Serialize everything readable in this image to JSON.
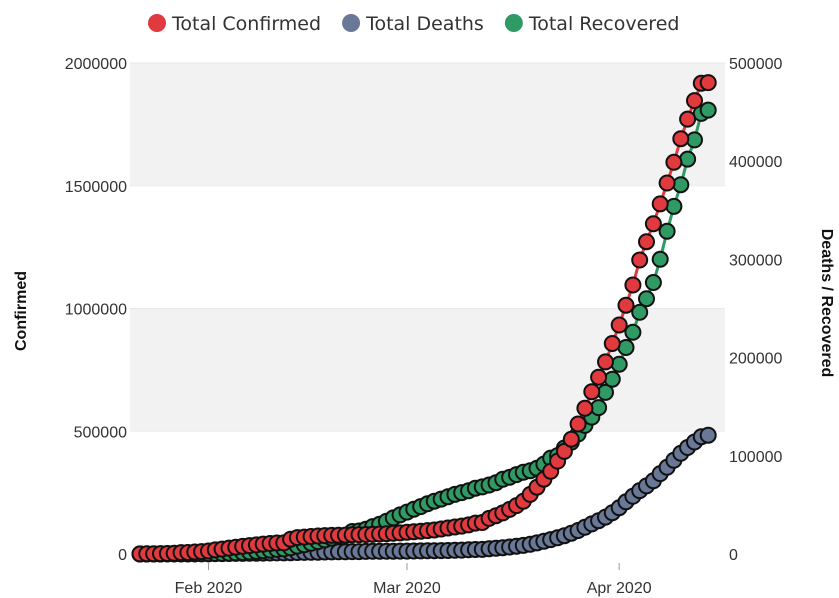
{
  "chart_data": {
    "type": "scatter",
    "x_axis": {
      "type": "date",
      "range": [
        "2020-01-22",
        "2020-04-15"
      ],
      "ticks": [
        {
          "date": "2020-02-01",
          "label": "Feb 2020"
        },
        {
          "date": "2020-03-01",
          "label": "Mar 2020"
        },
        {
          "date": "2020-04-01",
          "label": "Apr 2020"
        }
      ]
    },
    "y_axis_left": {
      "title": "Confirmed",
      "range": [
        0,
        2000000
      ],
      "ticks": [
        "0",
        "500000",
        "1000000",
        "1500000",
        "2000000"
      ]
    },
    "y_axis_right": {
      "title": "Deaths / Recovered",
      "range": [
        0,
        500000
      ],
      "ticks": [
        "0",
        "100000",
        "200000",
        "300000",
        "400000",
        "500000"
      ]
    },
    "grid": "alternating horizontal bands",
    "legend_placement": "top",
    "series": [
      {
        "name": "Total Confirmed",
        "axis": "left",
        "color": "#e0393e",
        "points": [
          [
            "2020-01-22",
            555
          ],
          [
            "2020-01-23",
            654
          ],
          [
            "2020-01-24",
            941
          ],
          [
            "2020-01-25",
            1434
          ],
          [
            "2020-01-26",
            2118
          ],
          [
            "2020-01-27",
            2927
          ],
          [
            "2020-01-28",
            5578
          ],
          [
            "2020-01-29",
            6166
          ],
          [
            "2020-01-30",
            8234
          ],
          [
            "2020-01-31",
            9927
          ],
          [
            "2020-02-01",
            12038
          ],
          [
            "2020-02-02",
            16787
          ],
          [
            "2020-02-03",
            19881
          ],
          [
            "2020-02-04",
            23892
          ],
          [
            "2020-02-05",
            27635
          ],
          [
            "2020-02-06",
            30794
          ],
          [
            "2020-02-07",
            34391
          ],
          [
            "2020-02-08",
            37120
          ],
          [
            "2020-02-09",
            40150
          ],
          [
            "2020-02-10",
            42762
          ],
          [
            "2020-02-11",
            44802
          ],
          [
            "2020-02-12",
            45221
          ],
          [
            "2020-02-13",
            60368
          ],
          [
            "2020-02-14",
            66885
          ],
          [
            "2020-02-15",
            69030
          ],
          [
            "2020-02-16",
            71224
          ],
          [
            "2020-02-17",
            73258
          ],
          [
            "2020-02-18",
            75136
          ],
          [
            "2020-02-19",
            75639
          ],
          [
            "2020-02-20",
            76197
          ],
          [
            "2020-02-21",
            76823
          ],
          [
            "2020-02-22",
            78579
          ],
          [
            "2020-02-23",
            78965
          ],
          [
            "2020-02-24",
            79568
          ],
          [
            "2020-02-25",
            80413
          ],
          [
            "2020-02-26",
            81395
          ],
          [
            "2020-02-27",
            82754
          ],
          [
            "2020-02-28",
            84120
          ],
          [
            "2020-02-29",
            86011
          ],
          [
            "2020-03-01",
            88369
          ],
          [
            "2020-03-02",
            90306
          ],
          [
            "2020-03-03",
            92840
          ],
          [
            "2020-03-04",
            95120
          ],
          [
            "2020-03-05",
            97886
          ],
          [
            "2020-03-06",
            101801
          ],
          [
            "2020-03-07",
            105847
          ],
          [
            "2020-03-08",
            109821
          ],
          [
            "2020-03-09",
            113590
          ],
          [
            "2020-03-10",
            118620
          ],
          [
            "2020-03-11",
            125875
          ],
          [
            "2020-03-12",
            128352
          ],
          [
            "2020-03-13",
            145205
          ],
          [
            "2020-03-14",
            156101
          ],
          [
            "2020-03-15",
            167454
          ],
          [
            "2020-03-16",
            181574
          ],
          [
            "2020-03-17",
            197102
          ],
          [
            "2020-03-18",
            214821
          ],
          [
            "2020-03-19",
            242570
          ],
          [
            "2020-03-20",
            272208
          ],
          [
            "2020-03-21",
            304507
          ],
          [
            "2020-03-22",
            336953
          ],
          [
            "2020-03-23",
            378235
          ],
          [
            "2020-03-24",
            418045
          ],
          [
            "2020-03-25",
            467653
          ],
          [
            "2020-03-26",
            529591
          ],
          [
            "2020-03-27",
            593291
          ],
          [
            "2020-03-28",
            660693
          ],
          [
            "2020-03-29",
            720140
          ],
          [
            "2020-03-30",
            782389
          ],
          [
            "2020-03-31",
            857487
          ],
          [
            "2020-04-01",
            932605
          ],
          [
            "2020-04-02",
            1013466
          ],
          [
            "2020-04-03",
            1095917
          ],
          [
            "2020-04-04",
            1197405
          ],
          [
            "2020-04-05",
            1272115
          ],
          [
            "2020-04-06",
            1345101
          ],
          [
            "2020-04-07",
            1426096
          ],
          [
            "2020-04-08",
            1511104
          ],
          [
            "2020-04-09",
            1595350
          ],
          [
            "2020-04-10",
            1691719
          ],
          [
            "2020-04-11",
            1771514
          ],
          [
            "2020-04-12",
            1846679
          ],
          [
            "2020-04-13",
            1917320
          ],
          [
            "2020-04-14",
            1920000
          ]
        ]
      },
      {
        "name": "Total Deaths",
        "axis": "right",
        "color": "#6a7898",
        "points": [
          [
            "2020-01-22",
            17
          ],
          [
            "2020-01-23",
            18
          ],
          [
            "2020-01-24",
            26
          ],
          [
            "2020-01-25",
            42
          ],
          [
            "2020-01-26",
            56
          ],
          [
            "2020-01-27",
            82
          ],
          [
            "2020-01-28",
            131
          ],
          [
            "2020-01-29",
            133
          ],
          [
            "2020-01-30",
            171
          ],
          [
            "2020-01-31",
            213
          ],
          [
            "2020-02-01",
            259
          ],
          [
            "2020-02-02",
            362
          ],
          [
            "2020-02-03",
            426
          ],
          [
            "2020-02-04",
            492
          ],
          [
            "2020-02-05",
            564
          ],
          [
            "2020-02-06",
            634
          ],
          [
            "2020-02-07",
            719
          ],
          [
            "2020-02-08",
            806
          ],
          [
            "2020-02-09",
            906
          ],
          [
            "2020-02-10",
            1013
          ],
          [
            "2020-02-11",
            1113
          ],
          [
            "2020-02-12",
            1118
          ],
          [
            "2020-02-13",
            1371
          ],
          [
            "2020-02-14",
            1523
          ],
          [
            "2020-02-15",
            1666
          ],
          [
            "2020-02-16",
            1770
          ],
          [
            "2020-02-17",
            1868
          ],
          [
            "2020-02-18",
            2007
          ],
          [
            "2020-02-19",
            2122
          ],
          [
            "2020-02-20",
            2247
          ],
          [
            "2020-02-21",
            2251
          ],
          [
            "2020-02-22",
            2458
          ],
          [
            "2020-02-23",
            2469
          ],
          [
            "2020-02-24",
            2629
          ],
          [
            "2020-02-25",
            2708
          ],
          [
            "2020-02-26",
            2770
          ],
          [
            "2020-02-27",
            2814
          ],
          [
            "2020-02-28",
            2872
          ],
          [
            "2020-02-29",
            2941
          ],
          [
            "2020-03-01",
            2996
          ],
          [
            "2020-03-02",
            3085
          ],
          [
            "2020-03-03",
            3160
          ],
          [
            "2020-03-04",
            3254
          ],
          [
            "2020-03-05",
            3348
          ],
          [
            "2020-03-06",
            3460
          ],
          [
            "2020-03-07",
            3558
          ],
          [
            "2020-03-08",
            3802
          ],
          [
            "2020-03-09",
            3988
          ],
          [
            "2020-03-10",
            4262
          ],
          [
            "2020-03-11",
            4615
          ],
          [
            "2020-03-12",
            4720
          ],
          [
            "2020-03-13",
            5404
          ],
          [
            "2020-03-14",
            5819
          ],
          [
            "2020-03-15",
            6440
          ],
          [
            "2020-03-16",
            7126
          ],
          [
            "2020-03-17",
            7905
          ],
          [
            "2020-03-18",
            8733
          ],
          [
            "2020-03-19",
            9867
          ],
          [
            "2020-03-20",
            11299
          ],
          [
            "2020-03-21",
            12973
          ],
          [
            "2020-03-22",
            14651
          ],
          [
            "2020-03-23",
            16505
          ],
          [
            "2020-03-24",
            18625
          ],
          [
            "2020-03-25",
            21181
          ],
          [
            "2020-03-26",
            23970
          ],
          [
            "2020-03-27",
            27198
          ],
          [
            "2020-03-28",
            30652
          ],
          [
            "2020-03-29",
            33925
          ],
          [
            "2020-03-30",
            37582
          ],
          [
            "2020-03-31",
            42107
          ],
          [
            "2020-04-01",
            47180
          ],
          [
            "2020-04-02",
            53190
          ],
          [
            "2020-04-03",
            58787
          ],
          [
            "2020-04-04",
            64606
          ],
          [
            "2020-04-05",
            69374
          ],
          [
            "2020-04-06",
            74565
          ],
          [
            "2020-04-07",
            81865
          ],
          [
            "2020-04-08",
            88338
          ],
          [
            "2020-04-09",
            95455
          ],
          [
            "2020-04-10",
            102525
          ],
          [
            "2020-04-11",
            108503
          ],
          [
            "2020-04-12",
            114091
          ],
          [
            "2020-04-13",
            119482
          ],
          [
            "2020-04-14",
            121000
          ]
        ]
      },
      {
        "name": "Total Recovered",
        "axis": "right",
        "color": "#2f9a64",
        "points": [
          [
            "2020-01-22",
            28
          ],
          [
            "2020-01-23",
            30
          ],
          [
            "2020-01-24",
            36
          ],
          [
            "2020-01-25",
            39
          ],
          [
            "2020-01-26",
            52
          ],
          [
            "2020-01-27",
            61
          ],
          [
            "2020-01-28",
            107
          ],
          [
            "2020-01-29",
            126
          ],
          [
            "2020-01-30",
            143
          ],
          [
            "2020-01-31",
            222
          ],
          [
            "2020-02-01",
            284
          ],
          [
            "2020-02-02",
            472
          ],
          [
            "2020-02-03",
            623
          ],
          [
            "2020-02-04",
            852
          ],
          [
            "2020-02-05",
            1124
          ],
          [
            "2020-02-06",
            1487
          ],
          [
            "2020-02-07",
            2011
          ],
          [
            "2020-02-08",
            2616
          ],
          [
            "2020-02-09",
            3244
          ],
          [
            "2020-02-10",
            3946
          ],
          [
            "2020-02-11",
            4683
          ],
          [
            "2020-02-12",
            5150
          ],
          [
            "2020-02-13",
            6295
          ],
          [
            "2020-02-14",
            8058
          ],
          [
            "2020-02-15",
            9395
          ],
          [
            "2020-02-16",
            10865
          ],
          [
            "2020-02-17",
            12583
          ],
          [
            "2020-02-18",
            14352
          ],
          [
            "2020-02-19",
            16121
          ],
          [
            "2020-02-20",
            18177
          ],
          [
            "2020-02-21",
            18890
          ],
          [
            "2020-02-22",
            22886
          ],
          [
            "2020-02-23",
            23394
          ],
          [
            "2020-02-24",
            25227
          ],
          [
            "2020-02-25",
            27905
          ],
          [
            "2020-02-26",
            30384
          ],
          [
            "2020-02-27",
            33277
          ],
          [
            "2020-02-28",
            36711
          ],
          [
            "2020-02-29",
            39782
          ],
          [
            "2020-03-01",
            42716
          ],
          [
            "2020-03-02",
            45602
          ],
          [
            "2020-03-03",
            48228
          ],
          [
            "2020-03-04",
            51170
          ],
          [
            "2020-03-05",
            53796
          ],
          [
            "2020-03-06",
            55865
          ],
          [
            "2020-03-07",
            58358
          ],
          [
            "2020-03-08",
            60694
          ],
          [
            "2020-03-09",
            62494
          ],
          [
            "2020-03-10",
            64404
          ],
          [
            "2020-03-11",
            67003
          ],
          [
            "2020-03-12",
            68324
          ],
          [
            "2020-03-13",
            70251
          ],
          [
            "2020-03-14",
            72624
          ],
          [
            "2020-03-15",
            76034
          ],
          [
            "2020-03-16",
            78088
          ],
          [
            "2020-03-17",
            80840
          ],
          [
            "2020-03-18",
            83207
          ],
          [
            "2020-03-19",
            84854
          ],
          [
            "2020-03-20",
            87256
          ],
          [
            "2020-03-21",
            91499
          ],
          [
            "2020-03-22",
            97697
          ],
          [
            "2020-03-23",
            100250
          ],
          [
            "2020-03-24",
            107946
          ],
          [
            "2020-03-25",
            113771
          ],
          [
            "2020-03-26",
            122150
          ],
          [
            "2020-03-27",
            130915
          ],
          [
            "2020-03-28",
            139415
          ],
          [
            "2020-03-29",
            149082
          ],
          [
            "2020-03-30",
            164566
          ],
          [
            "2020-03-31",
            178034
          ],
          [
            "2020-04-01",
            193177
          ],
          [
            "2020-04-02",
            210263
          ],
          [
            "2020-04-03",
            225796
          ],
          [
            "2020-04-04",
            246152
          ],
          [
            "2020-04-05",
            260012
          ],
          [
            "2020-04-06",
            276515
          ],
          [
            "2020-04-07",
            300054
          ],
          [
            "2020-04-08",
            328661
          ],
          [
            "2020-04-09",
            353975
          ],
          [
            "2020-04-10",
            376096
          ],
          [
            "2020-04-11",
            402110
          ],
          [
            "2020-04-12",
            421722
          ],
          [
            "2020-04-13",
            448655
          ],
          [
            "2020-04-14",
            452000
          ]
        ]
      }
    ]
  }
}
